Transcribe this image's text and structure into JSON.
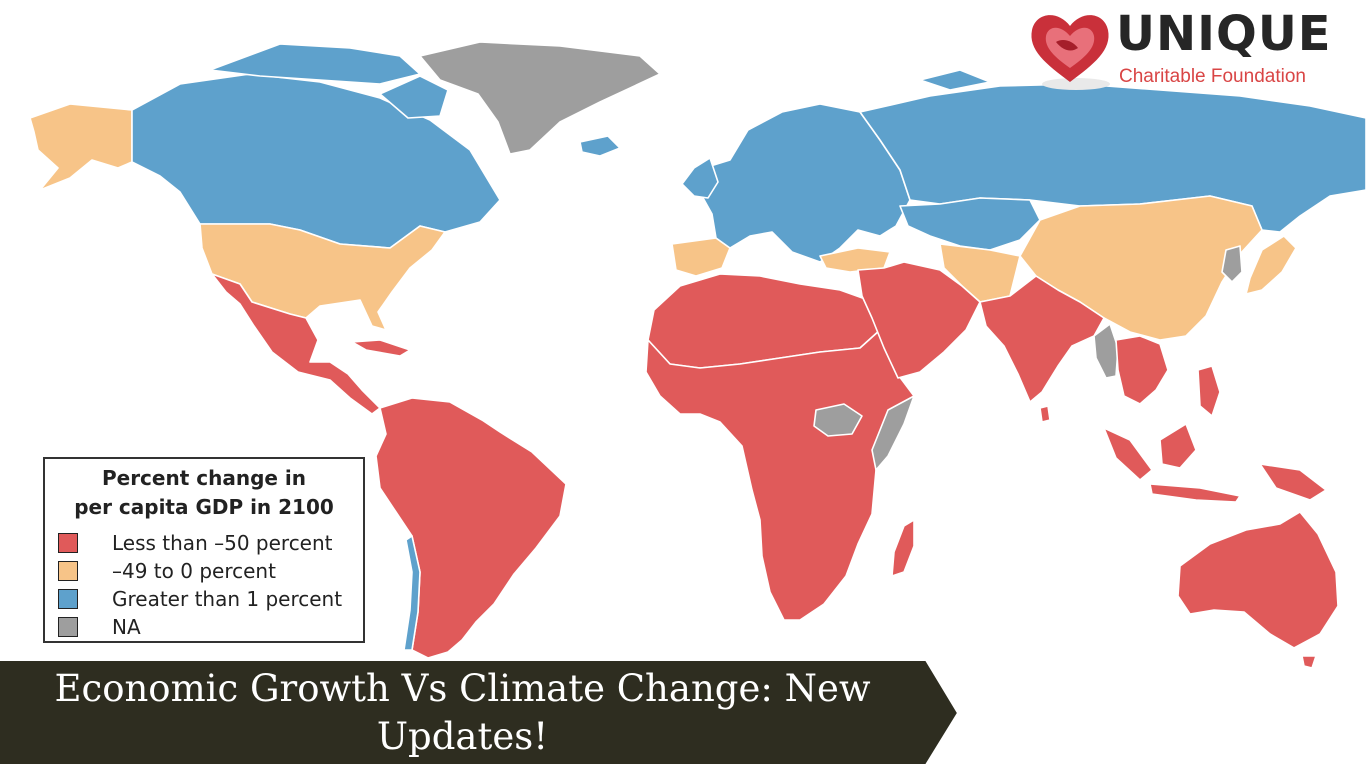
{
  "logo": {
    "wordmark": "UNIQUE",
    "subtitle": "Charitable Foundation",
    "icon": "heart-hands-icon"
  },
  "legend": {
    "title_line1": "Percent change in",
    "title_line2": "per capita GDP in 2100",
    "items": [
      {
        "label": "Less than –50 percent",
        "color": "#e05a5a"
      },
      {
        "label": "–49 to 0 percent",
        "color": "#f7c488"
      },
      {
        "label": "Greater than 1 percent",
        "color": "#5ea1cc"
      },
      {
        "label": "NA",
        "color": "#9e9e9e"
      }
    ]
  },
  "banner": {
    "title": "Economic Growth Vs Climate Change: New Updates!",
    "background": "#2e2d20",
    "border": "#ffffff"
  },
  "colors": {
    "less_than_minus_50": "#e05a5a",
    "minus_49_to_0": "#f7c488",
    "greater_than_1": "#5ea1cc",
    "na": "#9e9e9e",
    "brand_red": "#d94545",
    "brand_dark": "#262626"
  },
  "regions": [
    {
      "name": "Alaska",
      "category": "minus_49_to_0"
    },
    {
      "name": "Canada",
      "category": "greater_than_1"
    },
    {
      "name": "Greenland",
      "category": "na"
    },
    {
      "name": "United States",
      "category": "minus_49_to_0"
    },
    {
      "name": "Mexico and Central America",
      "category": "less_than_minus_50"
    },
    {
      "name": "South America",
      "category": "less_than_minus_50"
    },
    {
      "name": "Chile",
      "category": "greater_than_1"
    },
    {
      "name": "Europe",
      "category": "greater_than_1"
    },
    {
      "name": "Iberia",
      "category": "minus_49_to_0"
    },
    {
      "name": "Russia",
      "category": "greater_than_1"
    },
    {
      "name": "Turkey",
      "category": "minus_49_to_0"
    },
    {
      "name": "China",
      "category": "minus_49_to_0"
    },
    {
      "name": "Japan",
      "category": "minus_49_to_0"
    },
    {
      "name": "Korea",
      "category": "na"
    },
    {
      "name": "Africa",
      "category": "less_than_minus_50"
    },
    {
      "name": "South Sudan",
      "category": "na"
    },
    {
      "name": "Somalia",
      "category": "na"
    },
    {
      "name": "Middle East",
      "category": "less_than_minus_50"
    },
    {
      "name": "India",
      "category": "less_than_minus_50"
    },
    {
      "name": "Myanmar",
      "category": "na"
    },
    {
      "name": "Southeast Asia",
      "category": "less_than_minus_50"
    },
    {
      "name": "Australia",
      "category": "less_than_minus_50"
    },
    {
      "name": "Madagascar",
      "category": "less_than_minus_50"
    }
  ]
}
